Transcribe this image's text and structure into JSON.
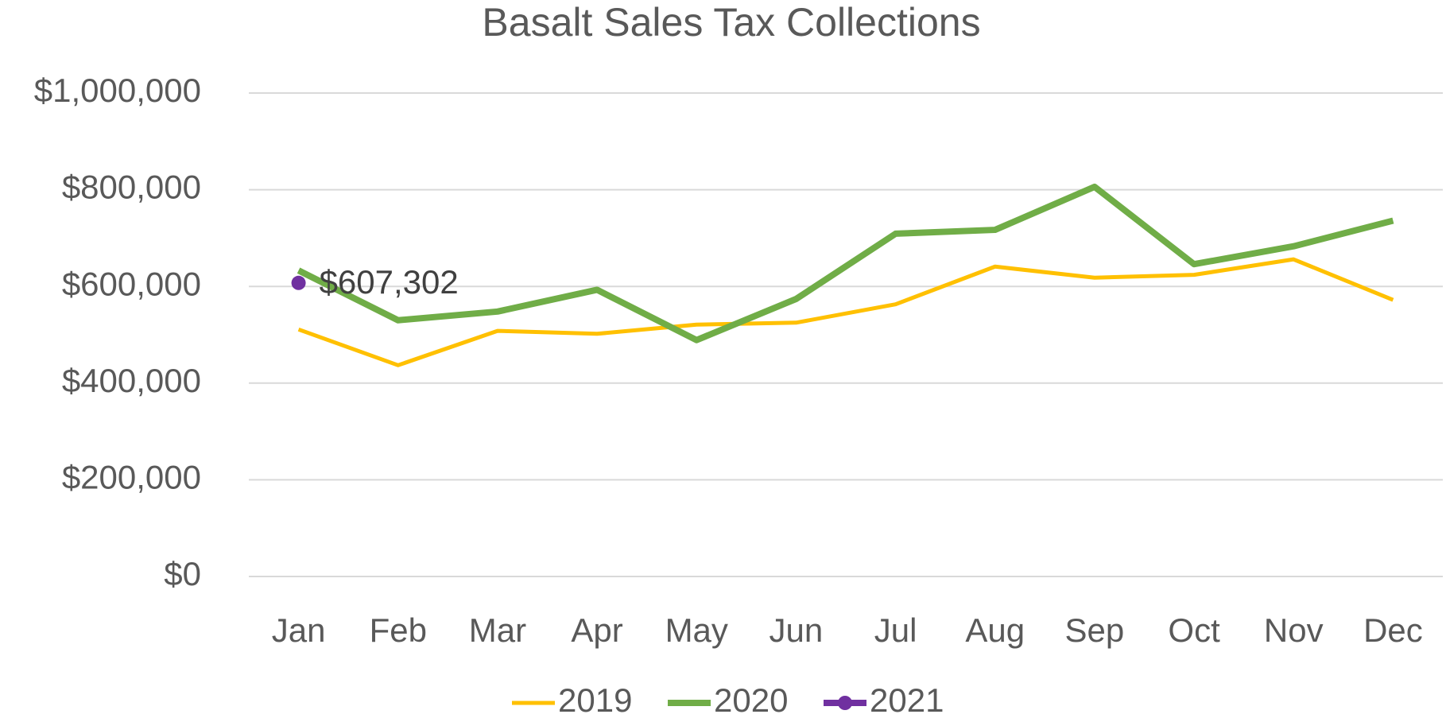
{
  "chart_data": {
    "type": "line",
    "title": "Basalt Sales Tax Collections",
    "categories": [
      "Jan",
      "Feb",
      "Mar",
      "Apr",
      "May",
      "Jun",
      "Jul",
      "Aug",
      "Sep",
      "Oct",
      "Nov",
      "Dec"
    ],
    "series": [
      {
        "name": "2019",
        "color": "#ffc000",
        "values": [
          511000,
          437000,
          508000,
          502000,
          521000,
          525000,
          563000,
          641000,
          618000,
          624000,
          656000,
          572000
        ]
      },
      {
        "name": "2020",
        "color": "#70ad47",
        "values": [
          633000,
          530000,
          548000,
          593000,
          489000,
          574000,
          709000,
          717000,
          806000,
          646000,
          683000,
          736000
        ]
      },
      {
        "name": "2021",
        "color": "#7030a0",
        "marker": true,
        "values": [
          607302,
          null,
          null,
          null,
          null,
          null,
          null,
          null,
          null,
          null,
          null,
          null
        ],
        "value_labels": [
          "$607,302",
          null,
          null,
          null,
          null,
          null,
          null,
          null,
          null,
          null,
          null,
          null
        ]
      }
    ],
    "ylim": [
      0,
      1000000
    ],
    "yticks": [
      {
        "value": 0,
        "label": "$0"
      },
      {
        "value": 200000,
        "label": "$200,000"
      },
      {
        "value": 400000,
        "label": "$400,000"
      },
      {
        "value": 600000,
        "label": "$600,000"
      },
      {
        "value": 800000,
        "label": "$800,000"
      },
      {
        "value": 1000000,
        "label": "$1,000,000"
      }
    ],
    "grid": true,
    "legend": "bottom"
  }
}
